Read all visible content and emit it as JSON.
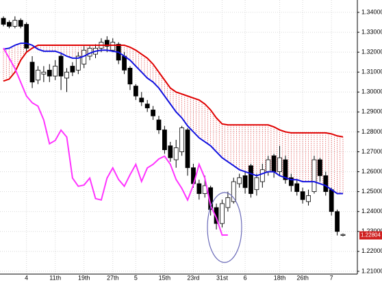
{
  "chart_data": {
    "type": "candlestick",
    "categories": [
      null,
      null,
      null,
      null,
      "4",
      null,
      null,
      null,
      null,
      "11th",
      null,
      null,
      null,
      null,
      "19th",
      null,
      null,
      null,
      null,
      "27th",
      null,
      null,
      null,
      "5",
      null,
      null,
      null,
      null,
      "15th",
      null,
      null,
      null,
      null,
      "23rd",
      null,
      null,
      null,
      null,
      "31st",
      null,
      null,
      null,
      "6",
      null,
      null,
      null,
      null,
      null,
      "18th",
      null,
      null,
      null,
      "26th",
      null,
      null,
      null,
      null,
      "7",
      null,
      null
    ],
    "open": [
      1.337,
      1.335,
      1.333,
      1.336,
      1.334,
      1.315,
      1.306,
      1.309,
      1.311,
      1.308,
      1.318,
      1.307,
      1.313,
      1.311,
      1.314,
      1.318,
      1.319,
      1.322,
      1.326,
      1.321,
      1.324,
      1.318,
      1.312,
      1.303,
      1.297,
      1.294,
      1.291,
      1.286,
      1.281,
      1.273,
      1.266,
      1.27,
      1.281,
      1.262,
      1.254,
      1.249,
      1.252,
      1.242,
      1.234,
      1.242,
      1.245,
      1.254,
      1.258,
      1.263,
      1.251,
      1.255,
      1.26,
      1.268,
      1.26,
      1.266,
      1.257,
      1.254,
      1.25,
      1.245,
      1.25,
      1.266,
      1.258,
      1.251,
      1.24,
      1.228
    ],
    "high": [
      1.338,
      1.336,
      1.338,
      1.337,
      1.335,
      1.318,
      1.313,
      1.313,
      1.314,
      1.316,
      1.319,
      1.312,
      1.315,
      1.32,
      1.323,
      1.323,
      1.324,
      1.327,
      1.328,
      1.327,
      1.325,
      1.32,
      1.313,
      1.304,
      1.3,
      1.296,
      1.293,
      1.288,
      1.283,
      1.275,
      1.276,
      1.283,
      1.282,
      1.264,
      1.256,
      1.258,
      1.253,
      1.244,
      1.246,
      1.25,
      1.257,
      1.259,
      1.26,
      1.264,
      1.259,
      1.264,
      1.268,
      1.269,
      1.273,
      1.268,
      1.259,
      1.256,
      1.252,
      1.251,
      1.268,
      1.267,
      1.26,
      1.252,
      1.241,
      1.229
    ],
    "low": [
      1.333,
      1.332,
      1.332,
      1.332,
      1.32,
      1.302,
      1.304,
      1.305,
      1.305,
      1.306,
      1.301,
      1.3,
      1.308,
      1.309,
      1.312,
      1.316,
      1.317,
      1.32,
      1.32,
      1.32,
      1.314,
      1.309,
      1.301,
      1.296,
      1.293,
      1.29,
      1.286,
      1.279,
      1.269,
      1.265,
      1.262,
      1.268,
      1.258,
      1.252,
      1.246,
      1.247,
      1.238,
      1.231,
      1.232,
      1.24,
      1.244,
      1.252,
      1.249,
      1.247,
      1.248,
      1.252,
      1.258,
      1.257,
      1.258,
      1.254,
      1.25,
      1.248,
      1.244,
      1.243,
      1.249,
      1.255,
      1.248,
      1.238,
      1.228,
      1.2275
    ],
    "close": [
      1.334,
      1.333,
      1.336,
      1.333,
      1.322,
      1.305,
      1.311,
      1.31,
      1.308,
      1.313,
      1.308,
      1.31,
      1.31,
      1.318,
      1.321,
      1.322,
      1.322,
      1.325,
      1.323,
      1.325,
      1.316,
      1.311,
      1.304,
      1.298,
      1.295,
      1.292,
      1.288,
      1.281,
      1.271,
      1.267,
      1.272,
      1.282,
      1.262,
      1.254,
      1.249,
      1.253,
      1.241,
      1.234,
      1.244,
      1.247,
      1.255,
      1.257,
      1.252,
      1.249,
      1.257,
      1.261,
      1.266,
      1.26,
      1.267,
      1.256,
      1.253,
      1.25,
      1.246,
      1.248,
      1.266,
      1.258,
      1.25,
      1.24,
      1.23,
      1.2285
    ],
    "lines": [
      {
        "color": "#e00000",
        "values": [
          1.3055,
          1.3065,
          1.31,
          1.316,
          1.32,
          1.322,
          1.3235,
          1.3235,
          1.3235,
          1.3235,
          1.3235,
          1.3235,
          1.3235,
          1.3235,
          1.3235,
          1.3235,
          1.3235,
          1.3235,
          1.3235,
          1.3235,
          1.3235,
          1.3235,
          1.3225,
          1.321,
          1.319,
          1.317,
          1.314,
          1.31,
          1.306,
          1.302,
          1.3,
          1.299,
          1.298,
          1.297,
          1.296,
          1.294,
          1.291,
          1.287,
          1.284,
          1.2835,
          1.2835,
          1.2835,
          1.2835,
          1.2835,
          1.2835,
          1.2835,
          1.2835,
          1.2825,
          1.281,
          1.28,
          1.2795,
          1.2795,
          1.2795,
          1.2795,
          1.2795,
          1.2795,
          1.2795,
          1.279,
          1.278,
          1.2775
        ]
      },
      {
        "color": "#1010e0",
        "values": [
          1.3215,
          1.322,
          1.3235,
          1.3245,
          1.3245,
          1.3235,
          1.3215,
          1.3205,
          1.3205,
          1.3205,
          1.3195,
          1.318,
          1.317,
          1.317,
          1.318,
          1.3195,
          1.3205,
          1.321,
          1.321,
          1.3205,
          1.32,
          1.318,
          1.316,
          1.313,
          1.31,
          1.307,
          1.305,
          1.302,
          1.298,
          1.294,
          1.29,
          1.287,
          1.283,
          1.28,
          1.277,
          1.275,
          1.273,
          1.27,
          1.267,
          1.265,
          1.263,
          1.261,
          1.26,
          1.259,
          1.258,
          1.259,
          1.26,
          1.26,
          1.258,
          1.257,
          1.256,
          1.256,
          1.255,
          1.255,
          1.255,
          1.254,
          1.253,
          1.251,
          1.249,
          1.249
        ]
      },
      {
        "color": "#ff33ff",
        "values": [
          1.3221,
          1.317,
          1.3118,
          1.3049,
          1.298,
          1.2946,
          1.2929,
          1.286,
          1.274,
          1.2757,
          1.2809,
          1.2774,
          1.2568,
          1.2527,
          1.2533,
          1.2568,
          1.2465,
          1.2458,
          1.2568,
          1.2619,
          1.2561,
          1.2527,
          1.2585,
          1.2637,
          1.2551,
          1.2619,
          1.2637,
          1.2664,
          1.2678,
          1.2637,
          1.2561,
          1.2516,
          1.2458,
          1.2533,
          1.2637,
          1.2568,
          1.243,
          1.2368,
          1.2282,
          1.2282,
          null,
          null,
          null,
          null,
          null,
          null,
          null,
          null,
          null,
          null,
          null,
          null,
          null,
          null,
          null,
          null,
          null,
          null,
          null,
          null
        ]
      }
    ],
    "last_price": 1.22804,
    "ylim": [
      1.2086,
      1.3462
    ],
    "yticks": [
      {
        "value": 1.21,
        "label": "1.21000"
      },
      {
        "value": 1.22,
        "label": "1.22000"
      },
      {
        "value": 1.23,
        "label": "1.23000"
      },
      {
        "value": 1.24,
        "label": "1.24000"
      },
      {
        "value": 1.25,
        "label": "1.25000"
      },
      {
        "value": 1.26,
        "label": "1.26000"
      },
      {
        "value": 1.27,
        "label": "1.27000"
      },
      {
        "value": 1.28,
        "label": "1.28000"
      },
      {
        "value": 1.29,
        "label": "1.29000"
      },
      {
        "value": 1.3,
        "label": "1.30000"
      },
      {
        "value": 1.31,
        "label": "1.31000"
      },
      {
        "value": 1.32,
        "label": "1.32000"
      },
      {
        "value": 1.33,
        "label": "1.33000"
      },
      {
        "value": 1.34,
        "label": "1.34000"
      }
    ],
    "grid": true
  }
}
